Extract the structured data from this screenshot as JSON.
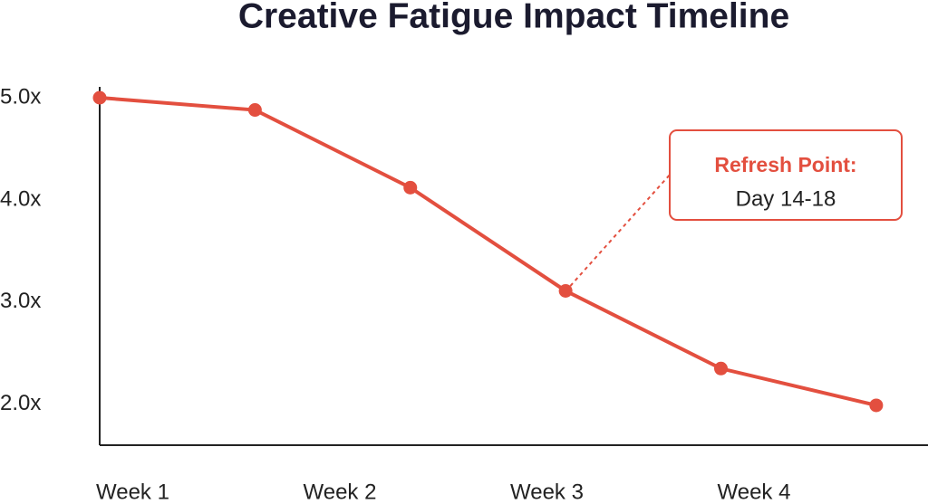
{
  "chart_data": {
    "type": "line",
    "title": "Creative Fatigue Impact Timeline",
    "x": [
      0,
      0.75,
      1.5,
      2.25,
      3,
      3.75
    ],
    "series": [
      {
        "color": "#e34f3f",
        "values": [
          5.0,
          4.88,
          4.12,
          3.11,
          2.35,
          1.99
        ]
      }
    ],
    "xlim": [
      0,
      4
    ],
    "xticks": [
      {
        "value": 0,
        "label": "Week 1"
      },
      {
        "value": 1,
        "label": "Week 2"
      },
      {
        "value": 2,
        "label": "Week 3"
      },
      {
        "value": 3,
        "label": "Week 4"
      }
    ],
    "ylim": [
      1.6,
      5.1
    ],
    "yticks": [
      {
        "value": 2,
        "label": "2.0x"
      },
      {
        "value": 3,
        "label": "3.0x"
      },
      {
        "value": 4,
        "label": "4.0x"
      },
      {
        "value": 5,
        "label": "5.0x"
      }
    ],
    "annotation": {
      "title": "Refresh Point:",
      "text": "Day 14-18"
    }
  }
}
